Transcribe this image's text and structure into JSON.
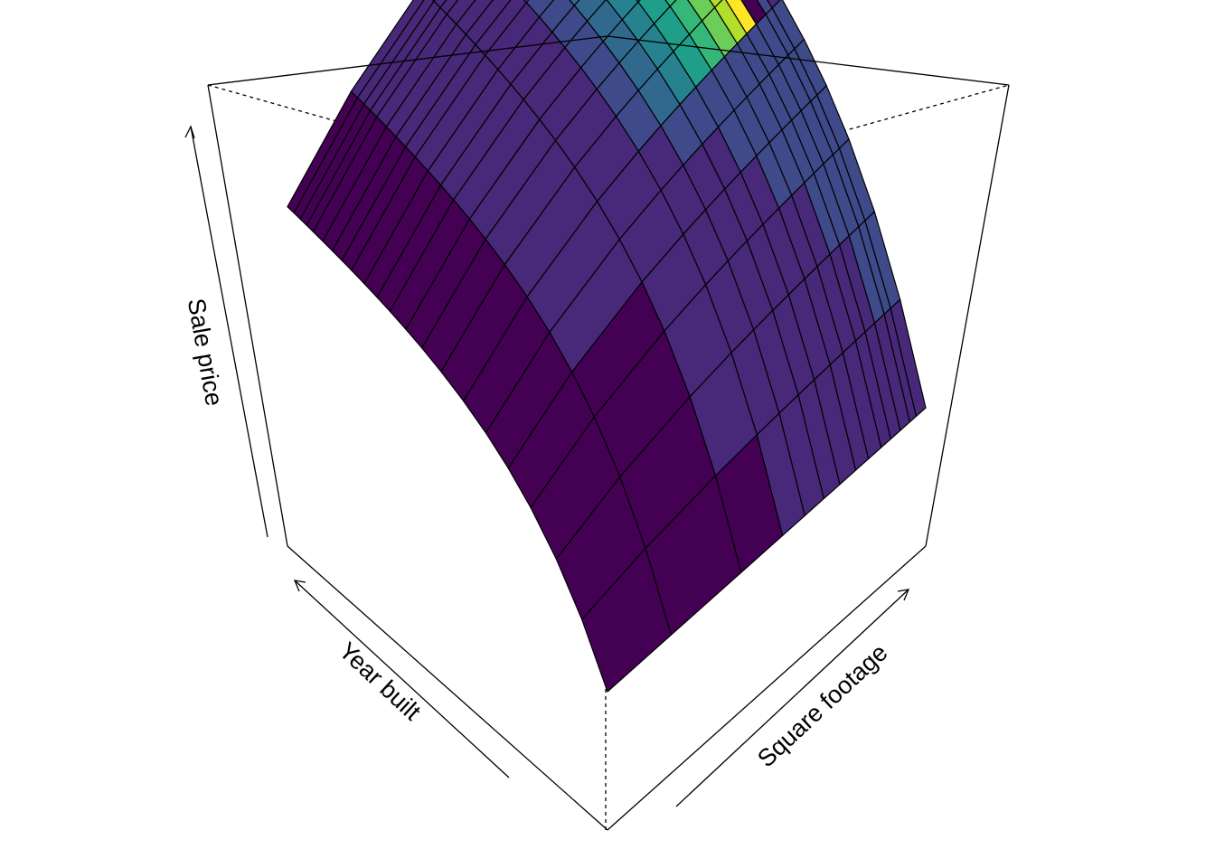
{
  "chart_data": {
    "type": "surface3d",
    "title": "",
    "xlabel": "Year built",
    "ylabel": "Square footage",
    "zlabel": "Sale price",
    "box": true,
    "shading": "viridis",
    "colors": [
      "#440154",
      "#482878",
      "#3E4A89",
      "#31688E",
      "#26828E",
      "#1F9E89",
      "#35B779",
      "#6DCD59",
      "#B4DE2C",
      "#FDE725"
    ]
  }
}
